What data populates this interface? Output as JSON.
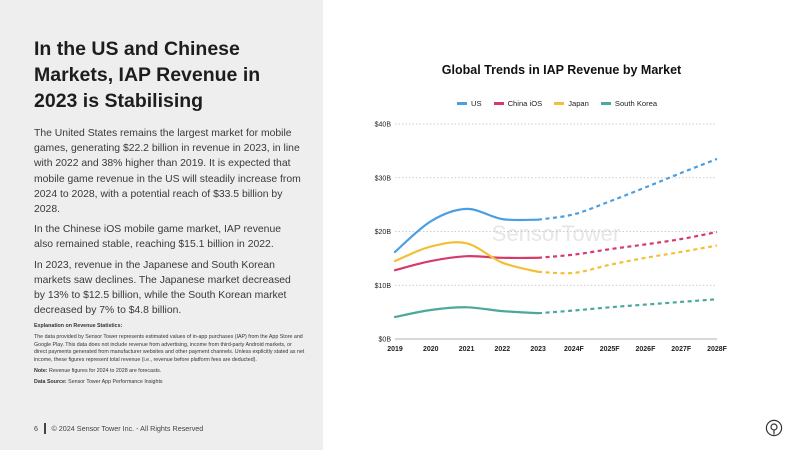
{
  "slide": {
    "title": "In the US and Chinese Markets, IAP Revenue in 2023 is Stabilising",
    "paragraphs": [
      "The United States remains the largest market for mobile games, generating $22.2 billion in revenue in 2023, in line with 2022 and 38% higher than 2019. It is expected that mobile game revenue in the US will steadily increase from 2024 to 2028, with a potential reach of $33.5 billion by 2028.",
      "In the Chinese iOS mobile game market, IAP revenue also remained stable, reaching $15.1 billion in 2022.",
      "In 2023, revenue in the Japanese and South Korean markets saw declines. The Japanese market decreased by 13% to $12.5 billion, while the South Korean market decreased by 7% to $4.8 billion."
    ],
    "notes": {
      "explanation_heading": "Explanation on Revenue Statistics:",
      "explanation_text": "The data provided by Sensor Tower represents estimated values of in-app purchases (IAP) from the App Store and Google Play. This data does not include revenue from advertising, income from third-party Android markets, or direct payments generated from manufacturer websites and other payment channels. Unless explicitly stated as net income, these figures represent total revenue (i.e., revenue before platform fees are deducted).",
      "note_label": "Note:",
      "note_text": " Revenue figures for 2024 to 2028 are forecasts.",
      "source_label": "Data Source:",
      "source_text": " Sensor Tower App Performance Insights"
    },
    "footer": {
      "page_number": "6",
      "copyright": "© 2024 Sensor Tower Inc. - All Rights Reserved"
    },
    "watermark": "SensorTower"
  },
  "chart_data": {
    "type": "line",
    "title": "Global Trends in IAP Revenue by Market",
    "categories": [
      "2019",
      "2020",
      "2021",
      "2022",
      "2023",
      "2024F",
      "2025F",
      "2026F",
      "2027F",
      "2028F"
    ],
    "y_ticks": [
      "$0B",
      "$10B",
      "$20B",
      "$30B",
      "$40B"
    ],
    "ylim": [
      0,
      40
    ],
    "forecast_from_index": 4,
    "legend_position": "top",
    "grid": true,
    "series": [
      {
        "name": "US",
        "color": "#4a9fe3",
        "values": [
          16.2,
          21.9,
          24.2,
          22.3,
          22.2,
          23.2,
          25.6,
          28.2,
          30.9,
          33.5
        ]
      },
      {
        "name": "China iOS",
        "color": "#d63a6a",
        "values": [
          12.8,
          14.5,
          15.4,
          15.1,
          15.1,
          15.7,
          16.7,
          17.6,
          18.6,
          19.9
        ]
      },
      {
        "name": "Japan",
        "color": "#f2c037",
        "values": [
          14.5,
          17.2,
          17.8,
          14.2,
          12.5,
          12.3,
          13.8,
          15.1,
          16.2,
          17.4
        ]
      },
      {
        "name": "South Korea",
        "color": "#4aa99a",
        "values": [
          4.1,
          5.4,
          5.9,
          5.2,
          4.8,
          5.3,
          5.9,
          6.4,
          6.9,
          7.4
        ]
      }
    ]
  }
}
